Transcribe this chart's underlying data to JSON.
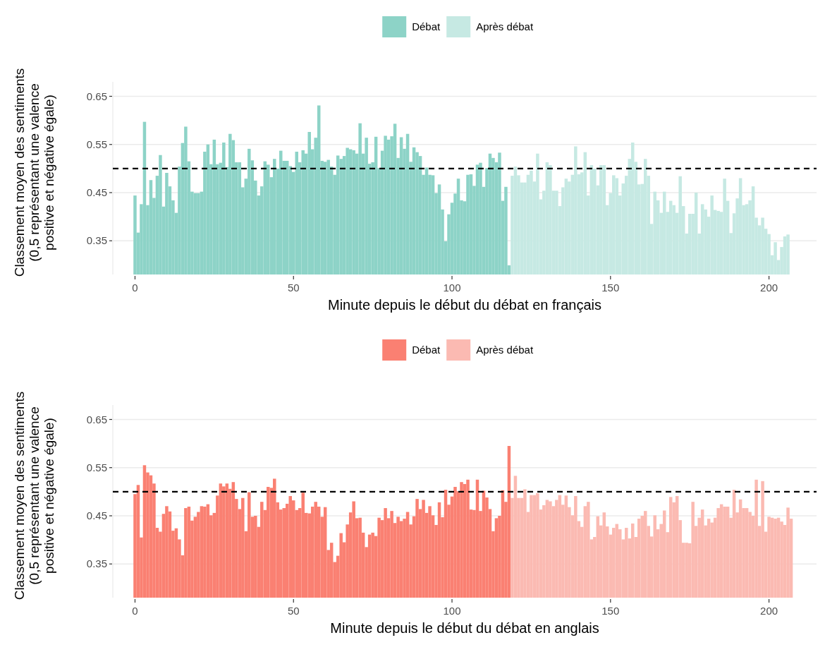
{
  "chart_data": [
    {
      "type": "bar",
      "xlabel": "Minute depuis le début du débat en français",
      "ylabel": "Classement moyen des sentiments\n(0,5 représentant une valence\npositive et négative égale)",
      "xlim": [
        -7,
        215
      ],
      "xticks": [
        0,
        50,
        100,
        150,
        200
      ],
      "ylim": [
        0.28,
        0.68
      ],
      "yticks": [
        0.35,
        0.45,
        0.55,
        0.65
      ],
      "grid": "y",
      "legend": "top",
      "ref_lines": [
        {
          "axis": "y",
          "value": 0.5,
          "color": "#000000",
          "line_style": "dashed"
        }
      ],
      "series": [
        {
          "name": "Débat",
          "color": "#8dd3c7",
          "x": [
            0,
            1,
            2,
            3,
            4,
            5,
            6,
            7,
            8,
            9,
            10,
            11,
            12,
            13,
            14,
            15,
            16,
            17,
            18,
            19,
            20,
            21,
            22,
            23,
            24,
            25,
            26,
            27,
            28,
            29,
            30,
            31,
            32,
            33,
            34,
            35,
            36,
            37,
            38,
            39,
            40,
            41,
            42,
            43,
            44,
            45,
            46,
            47,
            48,
            49,
            50,
            51,
            52,
            53,
            54,
            55,
            56,
            57,
            58,
            59,
            60,
            61,
            62,
            63,
            64,
            65,
            66,
            67,
            68,
            69,
            70,
            71,
            72,
            73,
            74,
            75,
            76,
            77,
            78,
            79,
            80,
            81,
            82,
            83,
            84,
            85,
            86,
            87,
            88,
            89,
            90,
            91,
            92,
            93,
            94,
            95,
            96,
            97,
            98,
            99,
            100,
            101,
            102,
            103,
            104,
            105,
            106,
            107,
            108,
            109,
            110,
            111,
            112,
            113,
            114,
            115,
            116,
            117,
            118
          ],
          "values": [
            0.444,
            0.367,
            0.426,
            0.597,
            0.424,
            0.476,
            0.439,
            0.485,
            0.528,
            0.421,
            0.491,
            0.463,
            0.434,
            0.408,
            0.504,
            0.553,
            0.587,
            0.515,
            0.452,
            0.449,
            0.449,
            0.452,
            0.535,
            0.55,
            0.509,
            0.56,
            0.509,
            0.512,
            0.554,
            0.503,
            0.572,
            0.559,
            0.513,
            0.513,
            0.461,
            0.479,
            0.541,
            0.517,
            0.475,
            0.444,
            0.463,
            0.515,
            0.508,
            0.482,
            0.52,
            0.5,
            0.537,
            0.516,
            0.516,
            0.505,
            0.493,
            0.535,
            0.513,
            0.538,
            0.531,
            0.576,
            0.54,
            0.564,
            0.631,
            0.516,
            0.514,
            0.518,
            0.504,
            0.487,
            0.527,
            0.52,
            0.526,
            0.543,
            0.54,
            0.538,
            0.531,
            0.594,
            0.531,
            0.564,
            0.51,
            0.513,
            0.566,
            0.501,
            0.537,
            0.568,
            0.56,
            0.567,
            0.593,
            0.522,
            0.565,
            0.541,
            0.572,
            0.514,
            0.544,
            0.534,
            0.526,
            0.487,
            0.502,
            0.487,
            0.486,
            0.449,
            0.467,
            0.415,
            0.349,
            0.405,
            0.429,
            0.448,
            0.479,
            0.434,
            0.432,
            0.487,
            0.488,
            0.464,
            0.508,
            0.512,
            0.462,
            0.501,
            0.531,
            0.522,
            0.513,
            0.533,
            0.433,
            0.462,
            0.299
          ]
        },
        {
          "name": "Après débat",
          "color": "#c6e9e3",
          "x": [
            119,
            120,
            121,
            122,
            123,
            124,
            125,
            126,
            127,
            128,
            129,
            130,
            131,
            132,
            133,
            134,
            135,
            136,
            137,
            138,
            139,
            140,
            141,
            142,
            143,
            144,
            145,
            146,
            147,
            148,
            149,
            150,
            151,
            152,
            153,
            154,
            155,
            156,
            157,
            158,
            159,
            160,
            161,
            162,
            163,
            164,
            165,
            166,
            167,
            168,
            169,
            170,
            171,
            172,
            173,
            174,
            175,
            176,
            177,
            178,
            179,
            180,
            181,
            182,
            183,
            184,
            185,
            186,
            187,
            188,
            189,
            190,
            191,
            192,
            193,
            194,
            195,
            196,
            197,
            198,
            199,
            200,
            201,
            202,
            203,
            204,
            205,
            206
          ],
          "values": [
            0.485,
            0.504,
            0.486,
            0.471,
            0.471,
            0.487,
            0.496,
            0.473,
            0.531,
            0.436,
            0.454,
            0.513,
            0.507,
            0.454,
            0.454,
            0.422,
            0.461,
            0.479,
            0.473,
            0.487,
            0.546,
            0.488,
            0.492,
            0.534,
            0.444,
            0.507,
            0.5,
            0.465,
            0.507,
            0.507,
            0.424,
            0.449,
            0.486,
            0.48,
            0.444,
            0.469,
            0.485,
            0.52,
            0.554,
            0.514,
            0.467,
            0.468,
            0.52,
            0.485,
            0.385,
            0.452,
            0.434,
            0.408,
            0.452,
            0.41,
            0.433,
            0.424,
            0.408,
            0.484,
            0.422,
            0.365,
            0.406,
            0.406,
            0.45,
            0.365,
            0.426,
            0.415,
            0.4,
            0.444,
            0.414,
            0.412,
            0.41,
            0.479,
            0.433,
            0.366,
            0.407,
            0.438,
            0.48,
            0.424,
            0.426,
            0.434,
            0.463,
            0.398,
            0.382,
            0.398,
            0.375,
            0.364,
            0.32,
            0.347,
            0.31,
            0.337,
            0.359,
            0.363
          ]
        }
      ]
    },
    {
      "type": "bar",
      "xlabel": "Minute depuis le début du débat en anglais",
      "ylabel": "Classement moyen des sentiments\n(0,5 représentant une valence\npositive et négative égale)",
      "xlim": [
        -7,
        215
      ],
      "xticks": [
        0,
        50,
        100,
        150,
        200
      ],
      "ylim": [
        0.28,
        0.68
      ],
      "yticks": [
        0.35,
        0.45,
        0.55,
        0.65
      ],
      "grid": "y",
      "legend": "top",
      "ref_lines": [
        {
          "axis": "y",
          "value": 0.5,
          "color": "#000000",
          "line_style": "dashed"
        }
      ],
      "series": [
        {
          "name": "Débat",
          "color": "#fa8072",
          "x": [
            0,
            1,
            2,
            3,
            4,
            5,
            6,
            7,
            8,
            9,
            10,
            11,
            12,
            13,
            14,
            15,
            16,
            17,
            18,
            19,
            20,
            21,
            22,
            23,
            24,
            25,
            26,
            27,
            28,
            29,
            30,
            31,
            32,
            33,
            34,
            35,
            36,
            37,
            38,
            39,
            40,
            41,
            42,
            43,
            44,
            45,
            46,
            47,
            48,
            49,
            50,
            51,
            52,
            53,
            54,
            55,
            56,
            57,
            58,
            59,
            60,
            61,
            62,
            63,
            64,
            65,
            66,
            67,
            68,
            69,
            70,
            71,
            72,
            73,
            74,
            75,
            76,
            77,
            78,
            79,
            80,
            81,
            82,
            83,
            84,
            85,
            86,
            87,
            88,
            89,
            90,
            91,
            92,
            93,
            94,
            95,
            96,
            97,
            98,
            99,
            100,
            101,
            102,
            103,
            104,
            105,
            106,
            107,
            108,
            109,
            110,
            111,
            112,
            113,
            114,
            115,
            116,
            117,
            118
          ],
          "values": [
            0.495,
            0.514,
            0.405,
            0.555,
            0.54,
            0.534,
            0.517,
            0.425,
            0.417,
            0.454,
            0.47,
            0.459,
            0.419,
            0.424,
            0.401,
            0.368,
            0.466,
            0.469,
            0.44,
            0.448,
            0.458,
            0.47,
            0.469,
            0.474,
            0.451,
            0.456,
            0.492,
            0.517,
            0.511,
            0.517,
            0.506,
            0.52,
            0.485,
            0.464,
            0.487,
            0.418,
            0.499,
            0.448,
            0.45,
            0.427,
            0.479,
            0.462,
            0.51,
            0.508,
            0.527,
            0.478,
            0.463,
            0.466,
            0.475,
            0.491,
            0.482,
            0.462,
            0.466,
            0.498,
            0.456,
            0.455,
            0.469,
            0.479,
            0.469,
            0.448,
            0.468,
            0.379,
            0.394,
            0.354,
            0.367,
            0.414,
            0.395,
            0.432,
            0.457,
            0.48,
            0.445,
            0.446,
            0.415,
            0.385,
            0.411,
            0.415,
            0.408,
            0.446,
            0.441,
            0.466,
            0.445,
            0.46,
            0.435,
            0.448,
            0.439,
            0.444,
            0.458,
            0.432,
            0.449,
            0.485,
            0.464,
            0.483,
            0.456,
            0.47,
            0.451,
            0.431,
            0.478,
            0.447,
            0.504,
            0.473,
            0.49,
            0.51,
            0.501,
            0.52,
            0.516,
            0.525,
            0.463,
            0.462,
            0.525,
            0.46,
            0.502,
            0.488,
            0.464,
            0.418,
            0.445,
            0.45,
            0.503,
            0.479,
            0.595
          ]
        },
        {
          "name": "Après débat",
          "color": "#fbbab2",
          "x": [
            119,
            120,
            121,
            122,
            123,
            124,
            125,
            126,
            127,
            128,
            129,
            130,
            131,
            132,
            133,
            134,
            135,
            136,
            137,
            138,
            139,
            140,
            141,
            142,
            143,
            144,
            145,
            146,
            147,
            148,
            149,
            150,
            151,
            152,
            153,
            154,
            155,
            156,
            157,
            158,
            159,
            160,
            161,
            162,
            163,
            164,
            165,
            166,
            167,
            168,
            169,
            170,
            171,
            172,
            173,
            174,
            175,
            176,
            177,
            178,
            179,
            180,
            181,
            182,
            183,
            184,
            185,
            186,
            187,
            188,
            189,
            190,
            191,
            192,
            193,
            194,
            195,
            196,
            197,
            198,
            199,
            200,
            201,
            202,
            203,
            204,
            205,
            206,
            207
          ],
          "values": [
            0.487,
            0.533,
            0.487,
            0.487,
            0.505,
            0.458,
            0.493,
            0.493,
            0.497,
            0.463,
            0.472,
            0.483,
            0.48,
            0.47,
            0.483,
            0.493,
            0.473,
            0.492,
            0.468,
            0.451,
            0.491,
            0.439,
            0.427,
            0.47,
            0.479,
            0.401,
            0.406,
            0.449,
            0.43,
            0.457,
            0.428,
            0.411,
            0.425,
            0.433,
            0.422,
            0.401,
            0.425,
            0.403,
            0.434,
            0.406,
            0.444,
            0.45,
            0.46,
            0.429,
            0.407,
            0.451,
            0.422,
            0.433,
            0.461,
            0.416,
            0.489,
            0.478,
            0.491,
            0.441,
            0.394,
            0.394,
            0.393,
            0.479,
            0.429,
            0.446,
            0.463,
            0.43,
            0.444,
            0.436,
            0.446,
            0.466,
            0.474,
            0.469,
            0.469,
            0.446,
            0.504,
            0.457,
            0.484,
            0.466,
            0.466,
            0.458,
            0.45,
            0.525,
            0.429,
            0.522,
            0.417,
            0.448,
            0.446,
            0.444,
            0.446,
            0.438,
            0.431,
            0.467,
            0.444
          ]
        }
      ]
    }
  ]
}
